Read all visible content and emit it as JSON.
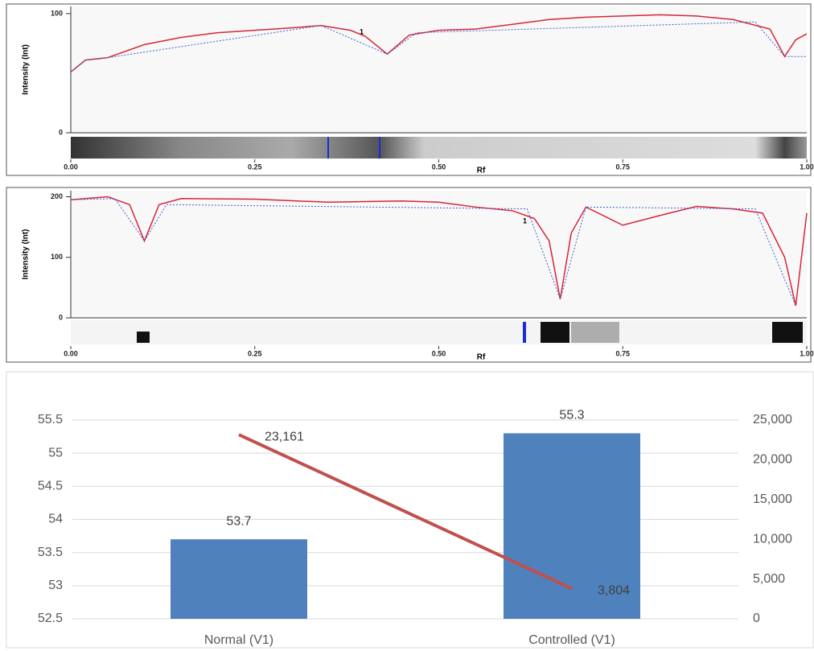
{
  "chart_data": [
    {
      "type": "line",
      "ylabel": "Intensity (Int)",
      "xlabel": "Rf",
      "annotation": "1",
      "x": [
        0,
        0.02,
        0.05,
        0.1,
        0.15,
        0.2,
        0.25,
        0.3,
        0.34,
        0.38,
        0.4,
        0.43,
        0.46,
        0.5,
        0.55,
        0.6,
        0.65,
        0.7,
        0.75,
        0.8,
        0.85,
        0.9,
        0.95,
        0.97,
        0.985,
        1.0
      ],
      "series": [
        {
          "color": "#d6263a",
          "values": [
            51,
            61,
            63,
            74,
            80,
            84,
            86,
            88,
            90,
            86,
            81,
            66,
            82,
            86,
            87,
            91,
            95,
            97,
            98,
            99,
            98,
            95,
            87,
            64,
            78,
            83
          ]
        },
        {
          "color": "#3b5fd6",
          "dashed": true,
          "x": [
            0,
            0.02,
            0.05,
            0.34,
            0.43,
            0.47,
            0.93,
            0.97,
            1.0
          ],
          "values": [
            51,
            61,
            63,
            90,
            66,
            84,
            93,
            64,
            64
          ]
        }
      ],
      "xlim": [
        0,
        1
      ],
      "ylim": [
        0,
        106
      ],
      "xticks": [
        {
          "value": 0,
          "label": "0.00"
        },
        {
          "value": 0.25,
          "label": "0.25"
        },
        {
          "value": 0.5,
          "label": "0.50"
        },
        {
          "value": 0.75,
          "label": "0.75"
        },
        {
          "value": 1,
          "label": "1.00"
        }
      ],
      "yticks": [
        0,
        100
      ]
    },
    {
      "type": "line",
      "ylabel": "Intensity (Int)",
      "xlabel": "Rf",
      "annotation": "1",
      "x": [
        0,
        0.05,
        0.08,
        0.1,
        0.12,
        0.15,
        0.25,
        0.35,
        0.45,
        0.5,
        0.55,
        0.6,
        0.63,
        0.65,
        0.665,
        0.68,
        0.7,
        0.75,
        0.8,
        0.85,
        0.9,
        0.94,
        0.97,
        0.985,
        1.0
      ],
      "series": [
        {
          "color": "#d6263a",
          "values": [
            195,
            200,
            187,
            127,
            187,
            197,
            196,
            191,
            193,
            191,
            183,
            177,
            164,
            127,
            31,
            140,
            183,
            153,
            169,
            184,
            180,
            173,
            100,
            20,
            173
          ]
        },
        {
          "color": "#3b5fd6",
          "dashed": true,
          "x": [
            0,
            0.06,
            0.1,
            0.13,
            0.62,
            0.665,
            0.7,
            0.93,
            0.985
          ],
          "values": [
            195,
            197,
            127,
            187,
            180,
            31,
            183,
            180,
            20
          ]
        }
      ],
      "xlim": [
        0,
        1
      ],
      "ylim": [
        0,
        210
      ],
      "xticks": [
        {
          "value": 0,
          "label": "0.00"
        },
        {
          "value": 0.25,
          "label": "0.25"
        },
        {
          "value": 0.5,
          "label": "0.50"
        },
        {
          "value": 0.75,
          "label": "0.75"
        },
        {
          "value": 1,
          "label": "1.00"
        }
      ],
      "yticks": [
        0,
        100,
        200
      ]
    },
    {
      "type": "bar",
      "categories": [
        "Normal (V1)",
        "Controlled (V1)"
      ],
      "series": [
        {
          "type": "bar",
          "color": "#4f81bd",
          "values": [
            53.7,
            55.3
          ]
        },
        {
          "type": "line",
          "axis": "y2",
          "color": "#c0504d",
          "values": [
            23161,
            3804
          ],
          "value_labels": [
            "23,161",
            "3,804"
          ]
        }
      ],
      "ylim": [
        52.5,
        55.5
      ],
      "yticks": [
        52.5,
        53,
        53.5,
        54,
        54.5,
        55,
        55.5
      ],
      "y2lim": [
        0,
        25000
      ],
      "y2ticks": [
        0,
        {
          "value": 5000,
          "label": "5,000"
        },
        {
          "value": 10000,
          "label": "10,000"
        },
        {
          "value": 15000,
          "label": "15,000"
        },
        {
          "value": 20000,
          "label": "20,000"
        },
        {
          "value": 25000,
          "label": "25,000"
        }
      ],
      "grid": true
    }
  ]
}
